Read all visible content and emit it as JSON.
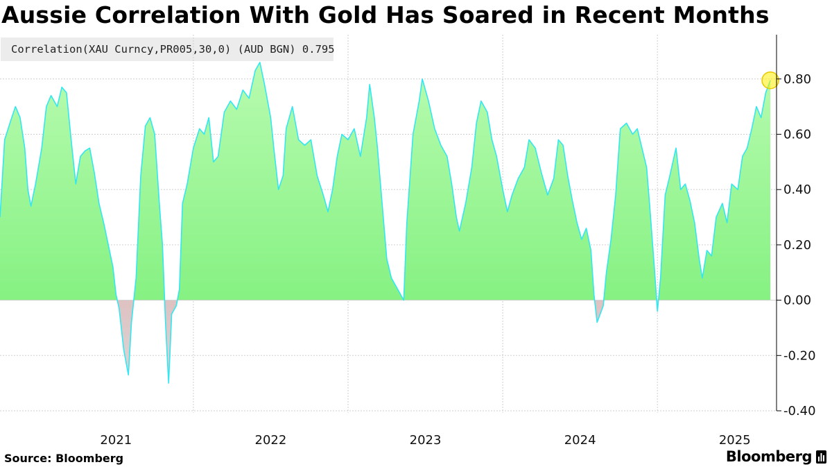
{
  "title": "Aussie Correlation With Gold Has Soared in Recent Months",
  "legend": {
    "label": "Correlation(XAU Curncy,PR005,30,0) (AUD BGN) 0.795",
    "color": "#33e6f0"
  },
  "source": "Source: Bloomberg",
  "brand": {
    "name": "Bloomberg",
    "icon": "bloomberg-terminal-icon"
  },
  "colors": {
    "line": "#33e6f0",
    "positive_top": "#b8fbb0",
    "positive_bottom": "#74ee72",
    "negative_top": "#f47f7f",
    "negative_bottom": "#d8d8d8",
    "grid": "#cfcfcf",
    "highlight": "#ffee00"
  },
  "chart_data": {
    "type": "area",
    "title": "Aussie Correlation With Gold Has Soared in Recent Months",
    "series_name": "Correlation(XAU Curncy,PR005,30,0) (AUD BGN)",
    "last_value": 0.795,
    "xlabel": "",
    "ylabel": "",
    "x_range": [
      2020.75,
      2025.77
    ],
    "ylim": [
      -0.4,
      0.96
    ],
    "y_ticks": [
      0.8,
      0.6,
      0.4,
      0.2,
      0.0,
      -0.2,
      -0.4
    ],
    "y_tick_labels": [
      "0.80",
      "0.60",
      "0.40",
      "0.20",
      "0.00",
      "-0.20",
      "-0.40"
    ],
    "x_labels": [
      {
        "label": "2021",
        "at": 2021.5
      },
      {
        "label": "2022",
        "at": 2022.5
      },
      {
        "label": "2023",
        "at": 2023.5
      },
      {
        "label": "2024",
        "at": 2024.5
      },
      {
        "label": "2025",
        "at": 2025.5
      }
    ],
    "x_gridlines": [
      2022.0,
      2023.0,
      2024.0,
      2025.0
    ],
    "grid": true,
    "legend_position": "top-left",
    "points": [
      [
        2020.75,
        0.3
      ],
      [
        2020.78,
        0.58
      ],
      [
        2020.82,
        0.65
      ],
      [
        2020.85,
        0.7
      ],
      [
        2020.88,
        0.66
      ],
      [
        2020.91,
        0.55
      ],
      [
        2020.93,
        0.4
      ],
      [
        2020.95,
        0.34
      ],
      [
        2020.98,
        0.42
      ],
      [
        2021.02,
        0.55
      ],
      [
        2021.05,
        0.7
      ],
      [
        2021.08,
        0.74
      ],
      [
        2021.12,
        0.7
      ],
      [
        2021.15,
        0.77
      ],
      [
        2021.18,
        0.75
      ],
      [
        2021.21,
        0.58
      ],
      [
        2021.24,
        0.42
      ],
      [
        2021.27,
        0.52
      ],
      [
        2021.3,
        0.54
      ],
      [
        2021.33,
        0.55
      ],
      [
        2021.36,
        0.46
      ],
      [
        2021.39,
        0.35
      ],
      [
        2021.42,
        0.28
      ],
      [
        2021.45,
        0.2
      ],
      [
        2021.48,
        0.12
      ],
      [
        2021.5,
        0.02
      ],
      [
        2021.52,
        -0.03
      ],
      [
        2021.55,
        -0.18
      ],
      [
        2021.58,
        -0.27
      ],
      [
        2021.6,
        -0.08
      ],
      [
        2021.63,
        0.08
      ],
      [
        2021.66,
        0.45
      ],
      [
        2021.69,
        0.63
      ],
      [
        2021.72,
        0.66
      ],
      [
        2021.75,
        0.6
      ],
      [
        2021.78,
        0.35
      ],
      [
        2021.8,
        0.2
      ],
      [
        2021.82,
        -0.08
      ],
      [
        2021.84,
        -0.3
      ],
      [
        2021.86,
        -0.05
      ],
      [
        2021.89,
        -0.02
      ],
      [
        2021.91,
        0.04
      ],
      [
        2021.93,
        0.35
      ],
      [
        2021.96,
        0.42
      ],
      [
        2022.0,
        0.55
      ],
      [
        2022.04,
        0.62
      ],
      [
        2022.07,
        0.6
      ],
      [
        2022.1,
        0.66
      ],
      [
        2022.13,
        0.5
      ],
      [
        2022.16,
        0.52
      ],
      [
        2022.2,
        0.68
      ],
      [
        2022.24,
        0.72
      ],
      [
        2022.28,
        0.69
      ],
      [
        2022.32,
        0.76
      ],
      [
        2022.36,
        0.73
      ],
      [
        2022.4,
        0.83
      ],
      [
        2022.43,
        0.86
      ],
      [
        2022.46,
        0.78
      ],
      [
        2022.5,
        0.66
      ],
      [
        2022.52,
        0.55
      ],
      [
        2022.55,
        0.4
      ],
      [
        2022.58,
        0.45
      ],
      [
        2022.6,
        0.62
      ],
      [
        2022.64,
        0.7
      ],
      [
        2022.68,
        0.58
      ],
      [
        2022.72,
        0.56
      ],
      [
        2022.76,
        0.58
      ],
      [
        2022.8,
        0.45
      ],
      [
        2022.84,
        0.38
      ],
      [
        2022.87,
        0.32
      ],
      [
        2022.9,
        0.4
      ],
      [
        2022.93,
        0.52
      ],
      [
        2022.96,
        0.6
      ],
      [
        2023.0,
        0.58
      ],
      [
        2023.04,
        0.62
      ],
      [
        2023.08,
        0.52
      ],
      [
        2023.12,
        0.66
      ],
      [
        2023.14,
        0.78
      ],
      [
        2023.17,
        0.66
      ],
      [
        2023.19,
        0.55
      ],
      [
        2023.22,
        0.35
      ],
      [
        2023.25,
        0.15
      ],
      [
        2023.28,
        0.08
      ],
      [
        2023.32,
        0.04
      ],
      [
        2023.36,
        0.0
      ],
      [
        2023.38,
        0.28
      ],
      [
        2023.42,
        0.6
      ],
      [
        2023.46,
        0.72
      ],
      [
        2023.48,
        0.8
      ],
      [
        2023.52,
        0.72
      ],
      [
        2023.56,
        0.62
      ],
      [
        2023.6,
        0.56
      ],
      [
        2023.64,
        0.52
      ],
      [
        2023.67,
        0.42
      ],
      [
        2023.7,
        0.3
      ],
      [
        2023.72,
        0.25
      ],
      [
        2023.76,
        0.35
      ],
      [
        2023.8,
        0.48
      ],
      [
        2023.83,
        0.64
      ],
      [
        2023.86,
        0.72
      ],
      [
        2023.9,
        0.68
      ],
      [
        2023.93,
        0.58
      ],
      [
        2023.96,
        0.52
      ],
      [
        2024.0,
        0.4
      ],
      [
        2024.03,
        0.32
      ],
      [
        2024.06,
        0.38
      ],
      [
        2024.1,
        0.44
      ],
      [
        2024.14,
        0.48
      ],
      [
        2024.17,
        0.58
      ],
      [
        2024.21,
        0.55
      ],
      [
        2024.25,
        0.46
      ],
      [
        2024.29,
        0.38
      ],
      [
        2024.33,
        0.44
      ],
      [
        2024.36,
        0.58
      ],
      [
        2024.39,
        0.56
      ],
      [
        2024.42,
        0.45
      ],
      [
        2024.45,
        0.36
      ],
      [
        2024.48,
        0.28
      ],
      [
        2024.51,
        0.22
      ],
      [
        2024.54,
        0.26
      ],
      [
        2024.57,
        0.18
      ],
      [
        2024.59,
        0.02
      ],
      [
        2024.61,
        -0.08
      ],
      [
        2024.63,
        -0.05
      ],
      [
        2024.65,
        -0.02
      ],
      [
        2024.67,
        0.1
      ],
      [
        2024.7,
        0.22
      ],
      [
        2024.73,
        0.38
      ],
      [
        2024.76,
        0.62
      ],
      [
        2024.8,
        0.64
      ],
      [
        2024.84,
        0.6
      ],
      [
        2024.87,
        0.62
      ],
      [
        2024.9,
        0.55
      ],
      [
        2024.93,
        0.48
      ],
      [
        2024.95,
        0.34
      ],
      [
        2024.98,
        0.12
      ],
      [
        2025.0,
        -0.04
      ],
      [
        2025.02,
        0.08
      ],
      [
        2025.05,
        0.38
      ],
      [
        2025.08,
        0.45
      ],
      [
        2025.12,
        0.55
      ],
      [
        2025.15,
        0.4
      ],
      [
        2025.18,
        0.42
      ],
      [
        2025.21,
        0.36
      ],
      [
        2025.24,
        0.28
      ],
      [
        2025.27,
        0.15
      ],
      [
        2025.29,
        0.08
      ],
      [
        2025.32,
        0.18
      ],
      [
        2025.35,
        0.16
      ],
      [
        2025.38,
        0.3
      ],
      [
        2025.42,
        0.35
      ],
      [
        2025.45,
        0.28
      ],
      [
        2025.48,
        0.42
      ],
      [
        2025.52,
        0.4
      ],
      [
        2025.55,
        0.52
      ],
      [
        2025.58,
        0.55
      ],
      [
        2025.61,
        0.62
      ],
      [
        2025.64,
        0.7
      ],
      [
        2025.67,
        0.66
      ],
      [
        2025.7,
        0.75
      ],
      [
        2025.73,
        0.795
      ]
    ]
  }
}
